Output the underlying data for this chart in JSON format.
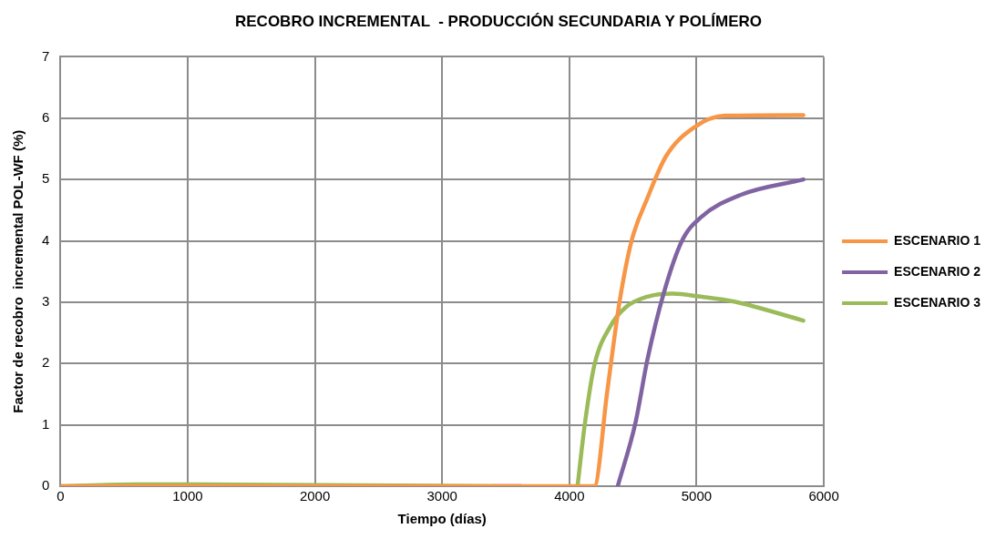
{
  "chart_data": {
    "type": "line",
    "title": "RECOBRO INCREMENTAL  - PRODUCCIÓN SECUNDARIA Y POLÍMERO",
    "xlabel": "Tiempo (días)",
    "ylabel": "Factor de recobro  incremental POL-WF (%)",
    "xlim": [
      0,
      6000
    ],
    "xticks": [
      0,
      1000,
      2000,
      3000,
      4000,
      5000,
      6000
    ],
    "ylim": [
      0,
      7
    ],
    "yticks": [
      0,
      1,
      2,
      3,
      4,
      5,
      6,
      7
    ],
    "grid": true,
    "legend": "right",
    "marker": "none",
    "line_style": "solid",
    "series": [
      {
        "name": "ESCENARIO 1",
        "color": "#f79646",
        "x": [
          0,
          4180,
          4196,
          4298,
          4394,
          4489,
          4614,
          4760,
          4981,
          5223,
          5839
        ],
        "values": [
          0,
          0,
          0,
          1.55,
          3.0,
          4.0,
          4.7,
          5.38,
          5.85,
          6.04,
          6.05
        ]
      },
      {
        "name": "ESCENARIO 2",
        "color": "#8064a2",
        "x": [
          3400,
          3620,
          3621,
          4380,
          4518,
          4614,
          4738,
          4885,
          5032,
          5347,
          5839
        ],
        "values": [
          0,
          0,
          null,
          0,
          1.02,
          2.07,
          3.12,
          4.0,
          4.38,
          4.75,
          5.0
        ]
      },
      {
        "name": "ESCENARIO 3",
        "color": "#9bbb59",
        "x": [
          0,
          600,
          1000,
          3400,
          3401,
          4064,
          4122,
          4196,
          4320,
          4445,
          4614,
          4812,
          5032,
          5296,
          5839
        ],
        "values": [
          0,
          0.03,
          0.03,
          0,
          null,
          0,
          1.02,
          1.97,
          2.6,
          2.92,
          3.09,
          3.14,
          3.09,
          3.01,
          2.7
        ]
      }
    ]
  }
}
